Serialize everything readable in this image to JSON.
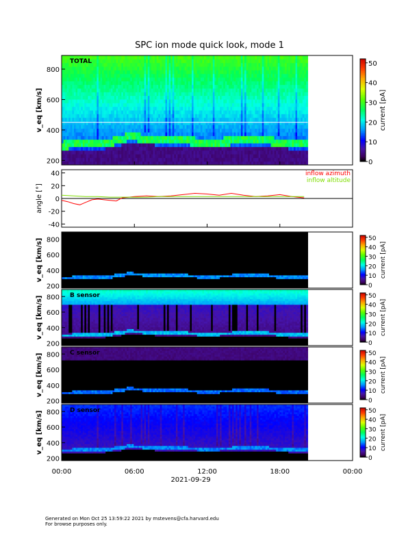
{
  "title": "SPC ion mode quick look, mode 1",
  "footer": {
    "line1": "Generated on Mon Oct 25 13:59:22 2021 by mstevens@cfa.harvard.edu",
    "line2": "For browse purposes only."
  },
  "colors": {
    "azimuth": "#ff0000",
    "altitude": "#7fdd00",
    "background": "#000000"
  },
  "chart_data": [
    {
      "type": "heatmap",
      "panel": "total",
      "label": "TOTAL",
      "ylabel": "v_eq [km/s]",
      "ylim": [
        170,
        890
      ],
      "yticks": [
        200,
        400,
        600,
        800
      ],
      "colorbar": {
        "label": "current [pA]",
        "range": [
          0,
          52
        ],
        "ticks": [
          0,
          10,
          20,
          30,
          40,
          50
        ]
      },
      "data_end_hour": 20.3,
      "reference_line_kms": 450,
      "peak_velocity_kms": [
        {
          "hour": 0,
          "v": 300
        },
        {
          "hour": 2,
          "v": 310
        },
        {
          "hour": 4,
          "v": 320
        },
        {
          "hour": 5.5,
          "v": 355
        },
        {
          "hour": 8,
          "v": 340
        },
        {
          "hour": 12,
          "v": 320
        },
        {
          "hour": 16,
          "v": 335
        },
        {
          "hour": 20,
          "v": 310
        }
      ]
    },
    {
      "type": "line",
      "panel": "angle",
      "ylabel": "angle [°]",
      "ylim": [
        -45,
        45
      ],
      "yticks": [
        -40,
        -20,
        0,
        20,
        40
      ],
      "series": [
        {
          "name": "inflow azimuth",
          "x": [
            0,
            0.5,
            1,
            1.5,
            2,
            2.5,
            3,
            3.5,
            4,
            4.5,
            5,
            6,
            7,
            8,
            9,
            10,
            11,
            12,
            13,
            14,
            15,
            16,
            17,
            18,
            19,
            20
          ],
          "values": [
            -3,
            -5,
            -8,
            -10,
            -6,
            -2,
            -1,
            -2,
            -3,
            -4,
            1,
            3,
            4,
            3,
            4,
            6,
            8,
            7,
            5,
            8,
            5,
            3,
            4,
            6,
            3,
            1
          ]
        },
        {
          "name": "inflow altitude",
          "x": [
            0,
            1,
            2,
            3,
            4,
            5,
            6,
            7,
            8,
            9,
            10,
            11,
            12,
            13,
            14,
            15,
            16,
            17,
            18,
            19,
            20
          ],
          "values": [
            5,
            4,
            3,
            3,
            2,
            2,
            2,
            2,
            3,
            3,
            3,
            3,
            3,
            3,
            3,
            3,
            3,
            3,
            3,
            3,
            3
          ]
        }
      ]
    },
    {
      "type": "heatmap",
      "panel": "sensor-a",
      "label": "",
      "ylabel": "v_eq [km/s]",
      "ylim": [
        170,
        890
      ],
      "yticks": [
        200,
        400,
        600,
        800
      ],
      "colorbar": {
        "label": "current [pA]",
        "range": [
          0,
          52
        ],
        "ticks": [
          0,
          10,
          20,
          30,
          40,
          50
        ]
      },
      "data_end_hour": 20.3
    },
    {
      "type": "heatmap",
      "panel": "sensor-b",
      "label": "B sensor",
      "ylabel": "v_eq [km/s]",
      "ylim": [
        170,
        890
      ],
      "yticks": [
        200,
        400,
        600,
        800
      ],
      "colorbar": {
        "label": "current [pA]",
        "range": [
          0,
          52
        ],
        "ticks": [
          0,
          10,
          20,
          30,
          40,
          50
        ]
      },
      "data_end_hour": 20.3
    },
    {
      "type": "heatmap",
      "panel": "sensor-c",
      "label": "C sensor",
      "ylabel": "v_eq [km/s]",
      "ylim": [
        170,
        890
      ],
      "yticks": [
        200,
        400,
        600,
        800
      ],
      "colorbar": {
        "label": "current [pA]",
        "range": [
          0,
          52
        ],
        "ticks": [
          0,
          10,
          20,
          30,
          40,
          50
        ]
      },
      "data_end_hour": 20.3
    },
    {
      "type": "heatmap",
      "panel": "sensor-d",
      "label": "D sensor",
      "ylabel": "v_eq [km/s]",
      "ylim": [
        170,
        890
      ],
      "yticks": [
        200,
        400,
        600,
        800
      ],
      "colorbar": {
        "label": "current [pA]",
        "range": [
          0,
          52
        ],
        "ticks": [
          0,
          10,
          20,
          30,
          40,
          50
        ]
      },
      "data_end_hour": 20.3
    }
  ],
  "x_axis": {
    "range_hours": [
      0,
      24
    ],
    "tick_labels": [
      "00:00",
      "06:00",
      "12:00",
      "18:00",
      "00:00"
    ],
    "tick_hours": [
      0,
      6,
      12,
      18,
      24
    ],
    "date": "2021-09-29"
  }
}
